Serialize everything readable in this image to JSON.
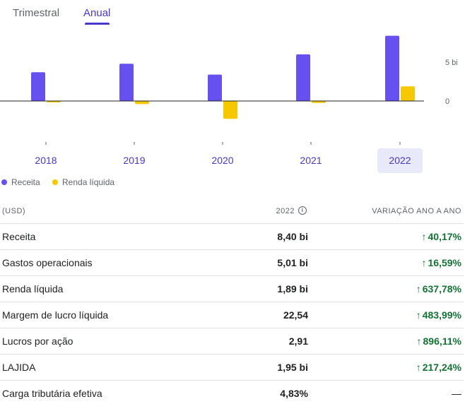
{
  "tabs": [
    {
      "label": "Trimestral",
      "selected": false
    },
    {
      "label": "Anual",
      "selected": true
    }
  ],
  "chart_data": {
    "type": "bar",
    "categories": [
      "2018",
      "2019",
      "2020",
      "2021",
      "2022"
    ],
    "selected_category": "2022",
    "series": [
      {
        "name": "Receita",
        "color": "#6650ef",
        "values": [
          3.7,
          4.8,
          3.4,
          6.0,
          8.4
        ]
      },
      {
        "name": "Renda líquida",
        "color": "#f5c800",
        "values": [
          -0.1,
          -0.4,
          -2.3,
          -0.25,
          1.89
        ]
      }
    ],
    "y_ticks": [
      {
        "value": 5,
        "label": "5 bi"
      },
      {
        "value": 0,
        "label": "0"
      }
    ],
    "ylim": [
      -2.5,
      8.7
    ],
    "grid": false,
    "legend_position": "bottom-left"
  },
  "legend": [
    {
      "label": "Receita",
      "color": "#6650ef"
    },
    {
      "label": "Renda líquida",
      "color": "#f5c800"
    }
  ],
  "table": {
    "headers": {
      "label": "(USD)",
      "year": "2022",
      "change": "VARIAÇÃO ANO A ANO"
    },
    "rows": [
      {
        "label": "Receita",
        "value": "8,40 bi",
        "change": "40,17%",
        "direction": "up"
      },
      {
        "label": "Gastos operacionais",
        "value": "5,01 bi",
        "change": "16,59%",
        "direction": "up"
      },
      {
        "label": "Renda líquida",
        "value": "1,89 bi",
        "change": "637,78%",
        "direction": "up"
      },
      {
        "label": "Margem de lucro líquida",
        "value": "22,54",
        "change": "483,99%",
        "direction": "up"
      },
      {
        "label": "Lucros por ação",
        "value": "2,91",
        "change": "896,11%",
        "direction": "up"
      },
      {
        "label": "LAJIDA",
        "value": "1,95 bi",
        "change": "217,24%",
        "direction": "up"
      },
      {
        "label": "Carga tributária efetiva",
        "value": "4,83%",
        "change": "—",
        "direction": "none"
      }
    ]
  },
  "icons": {
    "info": "info-icon",
    "up_arrow": "↑"
  }
}
